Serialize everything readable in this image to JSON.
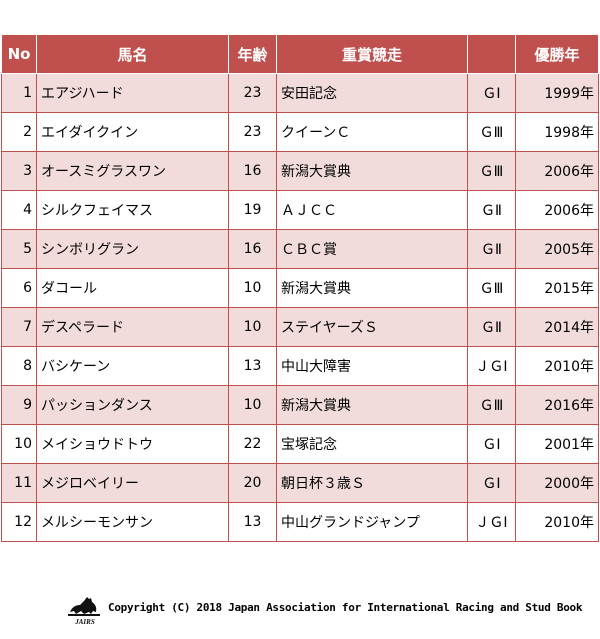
{
  "table": {
    "headers": {
      "no": "No",
      "name": "馬名",
      "age": "年齢",
      "race": "重賞競走",
      "grade": "",
      "year": "優勝年"
    },
    "rows": [
      {
        "no": "1",
        "name": "エアジハード",
        "age": "23",
        "race": "安田記念",
        "grade": "ＧⅠ",
        "year": "1999年"
      },
      {
        "no": "2",
        "name": "エイダイクイン",
        "age": "23",
        "race": "クイーンＣ",
        "grade": "ＧⅢ",
        "year": "1998年"
      },
      {
        "no": "3",
        "name": "オースミグラスワン",
        "age": "16",
        "race": "新潟大賞典",
        "grade": "ＧⅢ",
        "year": "2006年"
      },
      {
        "no": "4",
        "name": "シルクフェイマス",
        "age": "19",
        "race": "ＡＪＣＣ",
        "grade": "ＧⅡ",
        "year": "2006年"
      },
      {
        "no": "5",
        "name": "シンボリグラン",
        "age": "16",
        "race": "ＣＢＣ賞",
        "grade": "ＧⅡ",
        "year": "2005年"
      },
      {
        "no": "6",
        "name": "ダコール",
        "age": "10",
        "race": "新潟大賞典",
        "grade": "ＧⅢ",
        "year": "2015年"
      },
      {
        "no": "7",
        "name": "デスペラード",
        "age": "10",
        "race": "ステイヤーズＳ",
        "grade": "ＧⅡ",
        "year": "2014年"
      },
      {
        "no": "8",
        "name": "バシケーン",
        "age": "13",
        "race": "中山大障害",
        "grade": "ＪＧⅠ",
        "year": "2010年"
      },
      {
        "no": "9",
        "name": "パッションダンス",
        "age": "10",
        "race": "新潟大賞典",
        "grade": "ＧⅢ",
        "year": "2016年"
      },
      {
        "no": "10",
        "name": "メイショウドトウ",
        "age": "22",
        "race": "宝塚記念",
        "grade": "ＧⅠ",
        "year": "2001年"
      },
      {
        "no": "11",
        "name": "メジロベイリー",
        "age": "20",
        "race": "朝日杯３歳Ｓ",
        "grade": "ＧⅠ",
        "year": "2000年"
      },
      {
        "no": "12",
        "name": "メルシーモンサン",
        "age": "13",
        "race": "中山グランドジャンプ",
        "grade": "ＪＧⅠ",
        "year": "2010年"
      }
    ]
  },
  "footer": {
    "logo_text": "JAIRS",
    "copyright": "Copyright (C) 2018 Japan Association for International Racing and Stud Book"
  },
  "colors": {
    "header_bg": "#c0504d",
    "header_text": "#ffffff",
    "stripe_bg": "#f2dcdb",
    "border": "#c0504d"
  }
}
